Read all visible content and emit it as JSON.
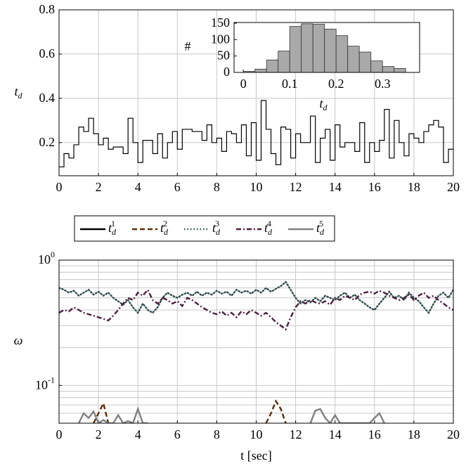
{
  "chart_data": [
    {
      "type": "line",
      "step": true,
      "ylabel": "t_d",
      "x": [
        0,
        0.25,
        0.5,
        0.75,
        1,
        1.25,
        1.5,
        1.75,
        2,
        2.25,
        2.5,
        2.75,
        3,
        3.25,
        3.5,
        3.75,
        4,
        4.25,
        4.5,
        4.75,
        5,
        5.25,
        5.5,
        5.75,
        6,
        6.25,
        6.5,
        6.75,
        7,
        7.25,
        7.5,
        7.75,
        8,
        8.25,
        8.5,
        8.75,
        9,
        9.25,
        9.5,
        9.75,
        10,
        10.25,
        10.5,
        10.75,
        11,
        11.25,
        11.5,
        11.75,
        12,
        12.25,
        12.5,
        12.75,
        13,
        13.25,
        13.5,
        13.75,
        14,
        14.25,
        14.5,
        14.75,
        15,
        15.25,
        15.5,
        15.75,
        16,
        16.25,
        16.5,
        16.75,
        17,
        17.25,
        17.5,
        17.75,
        18,
        18.25,
        18.5,
        18.75,
        19,
        19.25,
        19.5,
        19.75,
        20
      ],
      "series": [
        {
          "color": "#000000",
          "values": [
            0.09,
            0.15,
            0.13,
            0.19,
            0.27,
            0.25,
            0.31,
            0.24,
            0.19,
            0.22,
            0.17,
            0.18,
            0.18,
            0.15,
            0.31,
            0.2,
            0.11,
            0.21,
            0.21,
            0.15,
            0.24,
            0.13,
            0.2,
            0.25,
            0.17,
            0.26,
            0.26,
            0.25,
            0.25,
            0.21,
            0.28,
            0.2,
            0.22,
            0.16,
            0.25,
            0.24,
            0.2,
            0.28,
            0.14,
            0.29,
            0.12,
            0.39,
            0.26,
            0.15,
            0.1,
            0.27,
            0.26,
            0.13,
            0.24,
            0.2,
            0.2,
            0.32,
            0.11,
            0.22,
            0.26,
            0.12,
            0.28,
            0.18,
            0.2,
            0.2,
            0.16,
            0.29,
            0.11,
            0.2,
            0.16,
            0.21,
            0.35,
            0.13,
            0.3,
            0.2,
            0.14,
            0.24,
            0.22,
            0.2,
            0.25,
            0.28,
            0.3,
            0.27,
            0.11,
            0.17,
            0.17
          ]
        }
      ],
      "xlim": [
        0,
        20
      ],
      "xticks": [
        0,
        2,
        4,
        6,
        8,
        10,
        12,
        14,
        16,
        18,
        20
      ],
      "ylim": [
        0.05,
        0.8
      ],
      "yticks": [
        0.2,
        0.4,
        0.6,
        0.8
      ],
      "grid": true
    },
    {
      "type": "histogram",
      "xlabel": "t_d",
      "ylabel": "#",
      "color": "#a9a9a9",
      "bins": [
        0,
        0.025,
        0.05,
        0.075,
        0.1,
        0.125,
        0.15,
        0.175,
        0.2,
        0.225,
        0.25,
        0.275,
        0.3,
        0.325,
        0.35
      ],
      "values": [
        3,
        10,
        38,
        65,
        140,
        148,
        147,
        132,
        112,
        80,
        62,
        35,
        18,
        12
      ],
      "xlim": [
        -0.02,
        0.38
      ],
      "xticks": [
        0,
        0.1,
        0.2,
        0.3
      ],
      "ylim": [
        0,
        152
      ],
      "yticks": [
        0,
        50,
        100,
        150
      ]
    },
    {
      "type": "line",
      "log_y": true,
      "grid": true,
      "legend": "top",
      "xlabel": "t [sec]",
      "ylabel": "ω",
      "x": [
        0,
        0.25,
        0.5,
        0.75,
        1,
        1.25,
        1.5,
        1.75,
        2,
        2.25,
        2.5,
        2.75,
        3,
        3.25,
        3.5,
        3.75,
        4,
        4.25,
        4.5,
        4.75,
        5,
        5.25,
        5.5,
        5.75,
        6,
        6.25,
        6.5,
        6.75,
        7,
        7.25,
        7.5,
        7.75,
        8,
        8.25,
        8.5,
        8.75,
        9,
        9.25,
        9.5,
        9.75,
        10,
        10.25,
        10.5,
        10.75,
        11,
        11.25,
        11.5,
        11.75,
        12,
        12.25,
        12.5,
        12.75,
        13,
        13.25,
        13.5,
        13.75,
        14,
        14.25,
        14.5,
        14.75,
        15,
        15.25,
        15.5,
        15.75,
        16,
        16.25,
        16.5,
        16.75,
        17,
        17.25,
        17.5,
        17.75,
        18,
        18.25,
        18.5,
        18.75,
        19,
        19.25,
        19.5,
        19.75,
        20
      ],
      "series": [
        {
          "name": "t_d^1",
          "color": "#000000",
          "style": "solid",
          "values": [
            null,
            null,
            null,
            null,
            null,
            null,
            null,
            null,
            null,
            null,
            null,
            null,
            null,
            null,
            null,
            null,
            null,
            null,
            null,
            null,
            null,
            null,
            null,
            null,
            null,
            null,
            null,
            null,
            null,
            null,
            null,
            null,
            null,
            null,
            null,
            null,
            null,
            null,
            null,
            null,
            null,
            null,
            null,
            null,
            null,
            null,
            null,
            null,
            null,
            null,
            null,
            null,
            null,
            null,
            null,
            null,
            null,
            null,
            null,
            null,
            null,
            null,
            null,
            null,
            null,
            null,
            null,
            null,
            null,
            null,
            null,
            null,
            null,
            null,
            null,
            null,
            null,
            null,
            null,
            null,
            null
          ]
        },
        {
          "name": "t_d^2",
          "color": "#5c2e0a",
          "style": "dashed",
          "values": [
            null,
            null,
            null,
            null,
            null,
            null,
            null,
            0.05,
            0.06,
            0.072,
            0.05,
            null,
            null,
            null,
            null,
            null,
            null,
            null,
            null,
            null,
            null,
            null,
            null,
            null,
            null,
            null,
            null,
            null,
            null,
            null,
            null,
            null,
            null,
            null,
            null,
            null,
            null,
            null,
            null,
            null,
            null,
            null,
            0.05,
            0.06,
            0.075,
            0.065,
            0.05,
            null,
            null,
            null,
            null,
            null,
            null,
            null,
            null,
            null,
            null,
            null,
            null,
            null,
            null,
            null,
            null,
            null,
            null,
            null,
            null,
            null,
            null,
            null,
            null,
            null,
            null,
            null,
            null,
            null,
            null,
            null,
            null,
            null,
            null
          ]
        },
        {
          "name": "t_d^3",
          "color": "#2f4f4f",
          "style": "dotted",
          "values": [
            0.6,
            0.58,
            0.55,
            0.57,
            0.52,
            0.55,
            0.58,
            0.53,
            0.56,
            0.52,
            0.55,
            0.5,
            0.47,
            0.44,
            0.48,
            0.42,
            0.38,
            0.45,
            0.4,
            0.38,
            0.42,
            0.5,
            0.55,
            0.52,
            0.5,
            0.53,
            0.55,
            0.52,
            0.56,
            0.52,
            0.55,
            0.53,
            0.57,
            0.54,
            0.56,
            0.52,
            0.58,
            0.55,
            0.57,
            0.54,
            0.58,
            0.55,
            0.6,
            0.56,
            0.59,
            0.62,
            0.67,
            0.58,
            0.5,
            0.45,
            0.48,
            0.46,
            0.5,
            0.47,
            0.52,
            0.5,
            0.48,
            0.52,
            0.55,
            0.5,
            0.53,
            0.48,
            0.45,
            0.42,
            0.4,
            0.45,
            0.5,
            0.56,
            0.5,
            0.52,
            0.48,
            0.55,
            0.5,
            0.47,
            0.42,
            0.38,
            0.45,
            0.52,
            0.55,
            0.5,
            0.58
          ]
        },
        {
          "name": "t_d^4",
          "color": "#4d2040",
          "style": "dashdot",
          "values": [
            0.38,
            0.4,
            0.39,
            0.42,
            0.4,
            0.38,
            0.37,
            0.36,
            0.35,
            0.34,
            0.33,
            0.36,
            0.4,
            0.45,
            0.5,
            0.48,
            0.55,
            0.52,
            0.58,
            0.48,
            0.45,
            0.5,
            0.48,
            0.45,
            0.47,
            0.43,
            0.5,
            0.48,
            0.45,
            0.42,
            0.4,
            0.38,
            0.37,
            0.39,
            0.36,
            0.38,
            0.35,
            0.39,
            0.37,
            0.4,
            0.38,
            0.36,
            0.38,
            0.35,
            0.32,
            0.3,
            0.28,
            0.35,
            0.42,
            0.47,
            0.45,
            0.48,
            0.46,
            0.45,
            0.47,
            0.44,
            0.5,
            0.48,
            0.52,
            0.5,
            0.48,
            0.53,
            0.55,
            0.56,
            0.54,
            0.57,
            0.55,
            0.52,
            0.5,
            0.48,
            0.5,
            0.53,
            0.48,
            0.52,
            0.55,
            0.5,
            0.52,
            0.48,
            0.45,
            0.42,
            0.4
          ]
        },
        {
          "name": "t_d^5",
          "color": "#808080",
          "style": "solid",
          "values": [
            null,
            null,
            null,
            null,
            0.05,
            0.06,
            0.055,
            0.062,
            0.05,
            0.053,
            0.05,
            0.05,
            0.058,
            0.05,
            0.052,
            0.05,
            0.065,
            0.05,
            0.05,
            null,
            null,
            null,
            null,
            null,
            null,
            null,
            null,
            null,
            null,
            null,
            null,
            null,
            null,
            null,
            null,
            null,
            null,
            null,
            null,
            null,
            null,
            null,
            null,
            null,
            null,
            null,
            null,
            null,
            null,
            null,
            null,
            0.05,
            0.063,
            0.065,
            0.055,
            0.05,
            0.058,
            0.05,
            0.05,
            0.05,
            0.05,
            0.05,
            0.05,
            0.05,
            0.055,
            0.06,
            0.05,
            null,
            null,
            null,
            null,
            null,
            null,
            null,
            null,
            null,
            null,
            null,
            null,
            null,
            null
          ]
        }
      ],
      "xlim": [
        0,
        20
      ],
      "xticks": [
        0,
        2,
        4,
        6,
        8,
        10,
        12,
        14,
        16,
        18,
        20
      ],
      "ylim": [
        0.05,
        1
      ],
      "yticks": [
        {
          "value": 1,
          "label": "10^0"
        },
        {
          "value": 0.1,
          "label": "10^-1"
        }
      ]
    }
  ]
}
